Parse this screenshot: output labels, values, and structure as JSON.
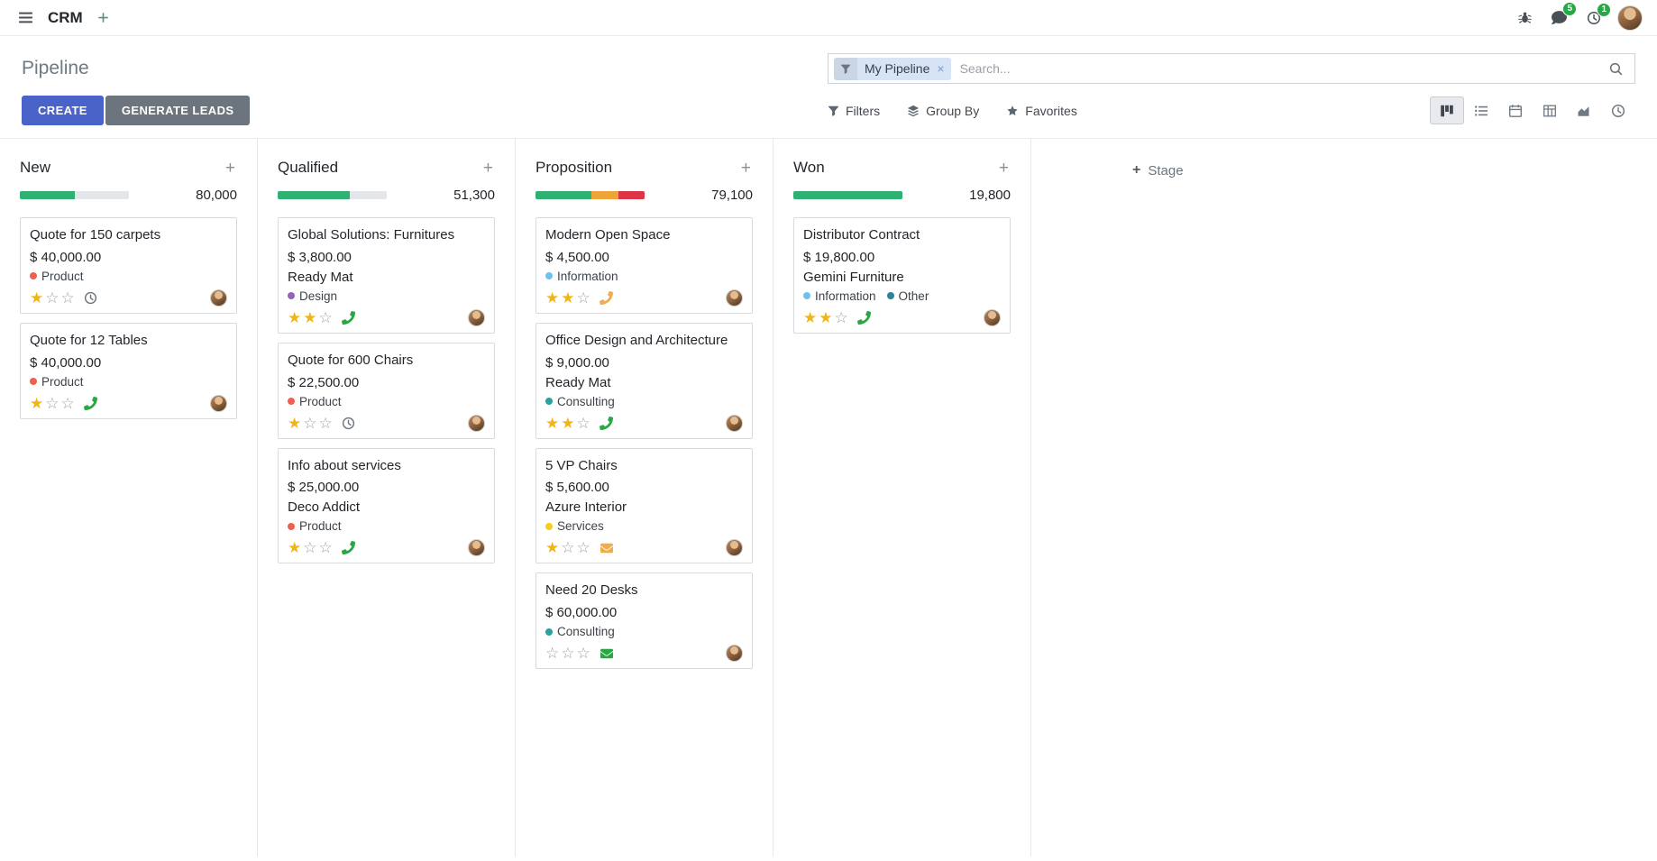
{
  "colors": {
    "primary_button": "#4a63c8",
    "secondary_button": "#6c757d",
    "success": "#28a745",
    "progress_green": "#2eb173",
    "progress_orange": "#efa439",
    "progress_red": "#dc3545",
    "star_filled": "#efb519",
    "star_empty": "#9da3a8",
    "facet_background": "#d7e4f5"
  },
  "navbar": {
    "app_name": "CRM",
    "messages_badge": "5",
    "activities_badge": "1"
  },
  "control_panel": {
    "title": "Pipeline",
    "create_label": "CREATE",
    "generate_leads_label": "GENERATE LEADS",
    "search": {
      "facet": "My Pipeline",
      "placeholder": "Search...",
      "remove_label": "×"
    },
    "filters_label": "Filters",
    "group_by_label": "Group By",
    "favorites_label": "Favorites",
    "active_view": "kanban"
  },
  "board": {
    "add_stage_label": "Stage",
    "quick_add_label": "+",
    "columns": [
      {
        "name": "New",
        "total": "80,000",
        "progress": [
          {
            "color": "green",
            "pct": 50
          }
        ],
        "cards": [
          {
            "title": "Quote for 150 carpets",
            "amount": "$ 40,000.00",
            "tags": [
              {
                "label": "Product",
                "color": "#F06050"
              }
            ],
            "stars": 1,
            "activity": {
              "type": "clock",
              "color": "#6c757d"
            }
          },
          {
            "title": "Quote for 12 Tables",
            "amount": "$ 40,000.00",
            "tags": [
              {
                "label": "Product",
                "color": "#F06050"
              }
            ],
            "stars": 1,
            "activity": {
              "type": "phone",
              "color": "#28a745"
            }
          }
        ]
      },
      {
        "name": "Qualified",
        "total": "51,300",
        "progress": [
          {
            "color": "green",
            "pct": 66
          }
        ],
        "cards": [
          {
            "title": "Global Solutions: Furnitures",
            "amount": "$ 3,800.00",
            "partner": "Ready Mat",
            "tags": [
              {
                "label": "Design",
                "color": "#9365B8"
              }
            ],
            "stars": 2,
            "activity": {
              "type": "phone",
              "color": "#28a745"
            }
          },
          {
            "title": "Quote for 600 Chairs",
            "amount": "$ 22,500.00",
            "tags": [
              {
                "label": "Product",
                "color": "#F06050"
              }
            ],
            "stars": 1,
            "activity": {
              "type": "clock",
              "color": "#6c757d"
            }
          },
          {
            "title": "Info about services",
            "amount": "$ 25,000.00",
            "partner": "Deco Addict",
            "tags": [
              {
                "label": "Product",
                "color": "#F06050"
              }
            ],
            "stars": 1,
            "activity": {
              "type": "phone",
              "color": "#28a745"
            }
          }
        ]
      },
      {
        "name": "Proposition",
        "total": "79,100",
        "progress": [
          {
            "color": "green",
            "pct": 51
          },
          {
            "color": "orange",
            "pct": 25
          },
          {
            "color": "red",
            "pct": 24
          }
        ],
        "cards": [
          {
            "title": "Modern Open Space",
            "amount": "$ 4,500.00",
            "tags": [
              {
                "label": "Information",
                "color": "#6CC1ED"
              }
            ],
            "stars": 2,
            "activity": {
              "type": "phone",
              "color": "#f0ad4e"
            }
          },
          {
            "title": "Office Design and Architecture",
            "amount": "$ 9,000.00",
            "partner": "Ready Mat",
            "tags": [
              {
                "label": "Consulting",
                "color": "#27a397"
              }
            ],
            "stars": 2,
            "activity": {
              "type": "phone",
              "color": "#28a745"
            }
          },
          {
            "title": "5 VP Chairs",
            "amount": "$ 5,600.00",
            "partner": "Azure Interior",
            "tags": [
              {
                "label": "Services",
                "color": "#F7CD1F"
              }
            ],
            "stars": 1,
            "activity": {
              "type": "mail",
              "color": "#f0ad4e"
            }
          },
          {
            "title": "Need 20 Desks",
            "amount": "$ 60,000.00",
            "tags": [
              {
                "label": "Consulting",
                "color": "#27a397"
              }
            ],
            "stars": 0,
            "activity": {
              "type": "mail",
              "color": "#28a745"
            }
          }
        ]
      },
      {
        "name": "Won",
        "total": "19,800",
        "progress": [
          {
            "color": "green",
            "pct": 100
          }
        ],
        "cards": [
          {
            "title": "Distributor Contract",
            "amount": "$ 19,800.00",
            "partner": "Gemini Furniture",
            "tags": [
              {
                "label": "Information",
                "color": "#6CC1ED"
              },
              {
                "label": "Other",
                "color": "#2C8397"
              }
            ],
            "stars": 2,
            "activity": {
              "type": "phone",
              "color": "#28a745"
            }
          }
        ]
      }
    ]
  }
}
